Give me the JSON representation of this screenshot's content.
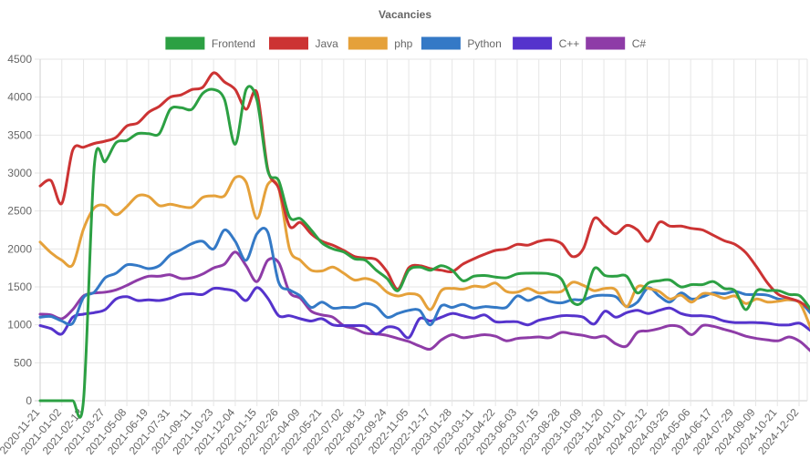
{
  "chart_data": {
    "type": "line",
    "title": "Vacancies",
    "xlabel": "",
    "ylabel": "",
    "ylim": [
      0,
      4500
    ],
    "yticks": [
      0,
      500,
      1000,
      1500,
      2000,
      2500,
      3000,
      3500,
      4000,
      4500
    ],
    "grid": true,
    "legend_position": "top",
    "x_tick_labels": [
      "2020-11-21",
      "2021-01-02",
      "2021-02-13",
      "2021-03-27",
      "2021-05-08",
      "2021-06-19",
      "2021-07-31",
      "2021-09-11",
      "2021-10-23",
      "2021-12-04",
      "2022-01-15",
      "2022-02-26",
      "2022-04-09",
      "2022-05-21",
      "2022-07-02",
      "2022-08-13",
      "2022-09-24",
      "2022-11-05",
      "2022-12-17",
      "2023-01-28",
      "2023-03-11",
      "2023-04-22",
      "2023-06-03",
      "2023-07-15",
      "2023-08-28",
      "2023-10-09",
      "2023-11-20",
      "2024-01-01",
      "2024-02-12",
      "2024-03-25",
      "2024-05-06",
      "2024-06-17",
      "2024-07-29",
      "2024-09-09",
      "2024-10-21",
      "2024-12-02"
    ],
    "x": [
      "2020-11-21",
      "2020-12-12",
      "2021-01-02",
      "2021-01-23",
      "2021-02-13",
      "2021-03-06",
      "2021-03-27",
      "2021-04-17",
      "2021-05-08",
      "2021-05-29",
      "2021-06-19",
      "2021-07-10",
      "2021-07-31",
      "2021-08-21",
      "2021-09-11",
      "2021-10-02",
      "2021-10-23",
      "2021-11-13",
      "2021-12-04",
      "2021-12-25",
      "2022-01-15",
      "2022-02-05",
      "2022-02-26",
      "2022-03-19",
      "2022-04-09",
      "2022-04-30",
      "2022-05-21",
      "2022-06-11",
      "2022-07-02",
      "2022-07-23",
      "2022-08-13",
      "2022-09-03",
      "2022-09-24",
      "2022-10-15",
      "2022-11-05",
      "2022-11-26",
      "2022-12-17",
      "2023-01-07",
      "2023-01-28",
      "2023-02-18",
      "2023-03-11",
      "2023-04-01",
      "2023-04-22",
      "2023-05-13",
      "2023-06-03",
      "2023-06-24",
      "2023-07-15",
      "2023-08-05",
      "2023-08-28",
      "2023-09-18",
      "2023-10-09",
      "2023-10-30",
      "2023-11-20",
      "2023-12-11",
      "2024-01-01",
      "2024-01-22",
      "2024-02-12",
      "2024-03-04",
      "2024-03-25",
      "2024-04-15",
      "2024-05-06",
      "2024-05-27",
      "2024-06-17",
      "2024-07-08",
      "2024-07-29",
      "2024-08-19",
      "2024-09-09",
      "2024-09-30",
      "2024-10-21",
      "2024-11-11",
      "2024-12-02",
      "2024-12-23"
    ],
    "series": [
      {
        "name": "Frontend",
        "color": "#2ca043",
        "values": [
          0,
          0,
          0,
          0,
          0,
          3100,
          3150,
          3400,
          3430,
          3520,
          3520,
          3520,
          3840,
          3860,
          3840,
          4050,
          4100,
          3970,
          3380,
          4100,
          3960,
          3030,
          2900,
          2420,
          2400,
          2250,
          2080,
          2000,
          1960,
          1870,
          1850,
          1720,
          1610,
          1450,
          1720,
          1760,
          1720,
          1780,
          1720,
          1580,
          1640,
          1650,
          1630,
          1620,
          1670,
          1680,
          1680,
          1670,
          1600,
          1300,
          1320,
          1740,
          1650,
          1640,
          1640,
          1420,
          1550,
          1580,
          1590,
          1500,
          1530,
          1530,
          1570,
          1480,
          1450,
          1200,
          1450,
          1450,
          1450,
          1400,
          1380,
          1200
        ]
      },
      {
        "name": "Java",
        "color": "#cc3333",
        "values": [
          2830,
          2900,
          2600,
          3300,
          3340,
          3390,
          3420,
          3470,
          3620,
          3660,
          3800,
          3880,
          4000,
          4030,
          4100,
          4130,
          4320,
          4200,
          4100,
          3840,
          4060,
          3050,
          2800,
          2300,
          2350,
          2200,
          2100,
          2050,
          1980,
          1900,
          1880,
          1860,
          1700,
          1470,
          1750,
          1780,
          1740,
          1720,
          1700,
          1800,
          1870,
          1930,
          1980,
          2000,
          2060,
          2050,
          2100,
          2120,
          2070,
          1900,
          2000,
          2400,
          2300,
          2200,
          2310,
          2250,
          2100,
          2350,
          2300,
          2300,
          2270,
          2250,
          2180,
          2110,
          2060,
          1950,
          1760,
          1550,
          1400,
          1350,
          1300,
          1200
        ]
      },
      {
        "name": "php",
        "color": "#e5a13a",
        "values": [
          2090,
          1950,
          1850,
          1790,
          2260,
          2540,
          2570,
          2450,
          2560,
          2700,
          2690,
          2570,
          2590,
          2560,
          2550,
          2680,
          2700,
          2700,
          2940,
          2880,
          2400,
          2850,
          2800,
          2000,
          1850,
          1720,
          1710,
          1760,
          1680,
          1590,
          1610,
          1560,
          1430,
          1380,
          1410,
          1380,
          1200,
          1450,
          1480,
          1470,
          1510,
          1500,
          1550,
          1440,
          1430,
          1480,
          1420,
          1430,
          1440,
          1560,
          1520,
          1450,
          1480,
          1460,
          1240,
          1500,
          1480,
          1440,
          1340,
          1390,
          1300,
          1410,
          1400,
          1350,
          1380,
          1280,
          1340,
          1300,
          1310,
          1330,
          1280,
          950
        ]
      },
      {
        "name": "Python",
        "color": "#3479c6",
        "values": [
          1100,
          1110,
          1050,
          1020,
          1360,
          1430,
          1620,
          1680,
          1790,
          1780,
          1740,
          1780,
          1920,
          1990,
          2070,
          2100,
          2000,
          2250,
          2100,
          1850,
          2200,
          2220,
          1560,
          1460,
          1380,
          1230,
          1300,
          1220,
          1230,
          1230,
          1280,
          1240,
          1100,
          1150,
          1190,
          1190,
          1000,
          1250,
          1230,
          1270,
          1220,
          1240,
          1230,
          1230,
          1380,
          1320,
          1370,
          1310,
          1290,
          1330,
          1330,
          1380,
          1390,
          1370,
          1240,
          1300,
          1490,
          1380,
          1300,
          1420,
          1340,
          1370,
          1420,
          1410,
          1440,
          1400,
          1400,
          1390,
          1340,
          1330,
          1300,
          1150
        ]
      },
      {
        "name": "C++",
        "color": "#5533cc",
        "values": [
          990,
          950,
          880,
          1100,
          1140,
          1160,
          1200,
          1340,
          1370,
          1320,
          1330,
          1320,
          1350,
          1400,
          1410,
          1400,
          1480,
          1470,
          1440,
          1320,
          1490,
          1350,
          1120,
          1120,
          1080,
          1050,
          1080,
          1000,
          990,
          990,
          980,
          880,
          970,
          950,
          830,
          1080,
          1050,
          1100,
          1150,
          1120,
          1090,
          1130,
          1040,
          1040,
          1040,
          1000,
          1060,
          1090,
          1120,
          1120,
          1100,
          1010,
          1180,
          1100,
          1160,
          1190,
          1150,
          1190,
          1220,
          1150,
          1120,
          1120,
          1100,
          1050,
          1030,
          1030,
          1030,
          1020,
          1000,
          1000,
          1020,
          920
        ]
      },
      {
        "name": "C#",
        "color": "#8e3ca7",
        "values": [
          1140,
          1130,
          1080,
          1200,
          1380,
          1420,
          1430,
          1460,
          1520,
          1590,
          1640,
          1640,
          1660,
          1610,
          1620,
          1670,
          1750,
          1800,
          1960,
          1780,
          1570,
          1850,
          1820,
          1430,
          1350,
          1180,
          1130,
          1100,
          990,
          950,
          890,
          880,
          860,
          820,
          780,
          720,
          680,
          800,
          870,
          830,
          850,
          870,
          850,
          790,
          820,
          830,
          840,
          830,
          900,
          880,
          860,
          830,
          850,
          750,
          720,
          900,
          920,
          950,
          990,
          970,
          870,
          990,
          980,
          940,
          900,
          850,
          820,
          800,
          790,
          840,
          780,
          650
        ]
      }
    ]
  }
}
